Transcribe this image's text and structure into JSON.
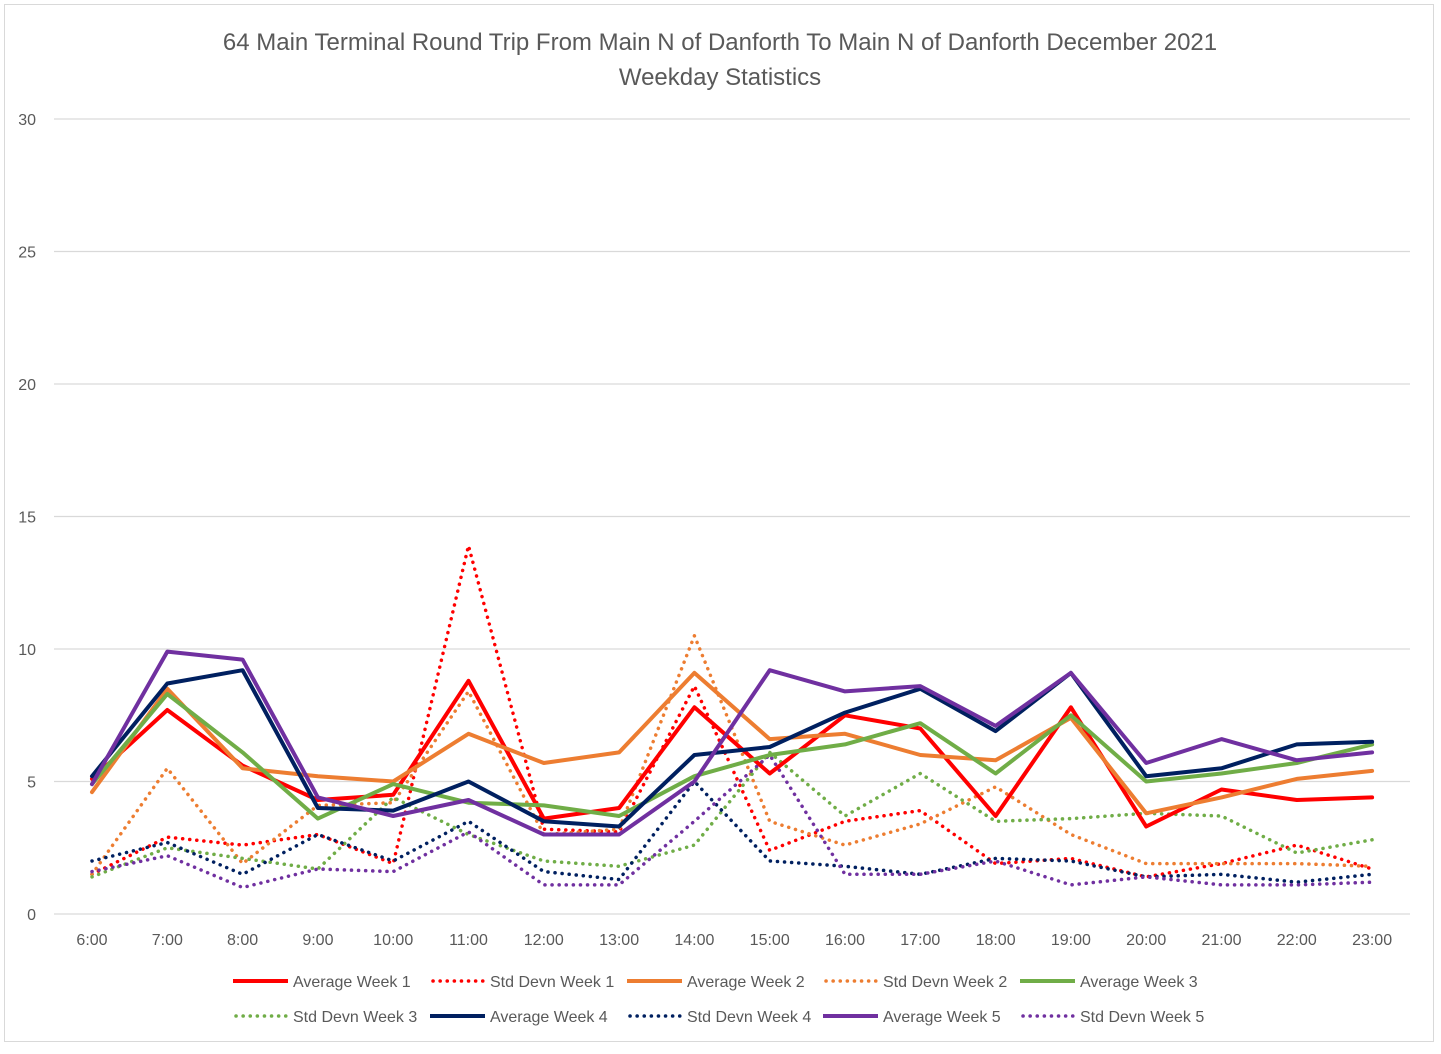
{
  "chart_data": {
    "type": "line",
    "title": "64 Main Terminal Round Trip From Main N of Danforth To Main N of Danforth December 2021",
    "subtitle": "Weekday Statistics",
    "xlabel": "",
    "ylabel": "",
    "ylim": [
      0,
      30
    ],
    "yticks": [
      "0",
      "5",
      "10",
      "15",
      "20",
      "25",
      "30"
    ],
    "grid": true,
    "legend_position": "bottom",
    "x": [
      "6:00",
      "7:00",
      "8:00",
      "9:00",
      "10:00",
      "11:00",
      "12:00",
      "13:00",
      "14:00",
      "15:00",
      "16:00",
      "17:00",
      "18:00",
      "19:00",
      "20:00",
      "21:00",
      "22:00",
      "23:00"
    ],
    "series": [
      {
        "name": "Average Week 1",
        "style": "solid",
        "color": "#ff0000",
        "values": [
          5.1,
          7.7,
          5.6,
          4.3,
          4.5,
          8.8,
          3.6,
          4.0,
          7.8,
          5.3,
          7.5,
          7.0,
          3.7,
          7.8,
          3.3,
          4.7,
          4.3,
          4.4
        ]
      },
      {
        "name": "Std Devn Week 1",
        "style": "dotted",
        "color": "#ff0000",
        "values": [
          1.5,
          2.9,
          2.6,
          3.0,
          1.9,
          13.9,
          3.2,
          3.1,
          8.6,
          2.4,
          3.5,
          3.9,
          1.9,
          2.1,
          1.4,
          1.9,
          2.6,
          1.7
        ]
      },
      {
        "name": "Average Week 2",
        "style": "solid",
        "color": "#ed7d31",
        "values": [
          4.6,
          8.5,
          5.5,
          5.2,
          5.0,
          6.8,
          5.7,
          6.1,
          9.1,
          6.6,
          6.8,
          6.0,
          5.8,
          7.4,
          3.8,
          4.4,
          5.1,
          5.4
        ]
      },
      {
        "name": "Std Devn Week 2",
        "style": "dotted",
        "color": "#ed7d31",
        "values": [
          1.5,
          5.5,
          1.9,
          4.1,
          4.2,
          8.4,
          3.0,
          3.2,
          10.5,
          3.5,
          2.6,
          3.4,
          4.8,
          3.0,
          1.9,
          1.9,
          1.9,
          1.8
        ]
      },
      {
        "name": "Average Week 3",
        "style": "solid",
        "color": "#70ad47",
        "values": [
          4.9,
          8.3,
          6.1,
          3.6,
          4.9,
          4.2,
          4.1,
          3.7,
          5.2,
          6.0,
          6.4,
          7.2,
          5.3,
          7.5,
          5.0,
          5.3,
          5.7,
          6.4
        ]
      },
      {
        "name": "Std Devn Week 3",
        "style": "dotted",
        "color": "#70ad47",
        "values": [
          1.4,
          2.5,
          2.1,
          1.7,
          4.4,
          3.0,
          2.0,
          1.8,
          2.6,
          6.1,
          3.7,
          5.3,
          3.5,
          3.6,
          3.8,
          3.7,
          2.3,
          2.8
        ]
      },
      {
        "name": "Average Week 4",
        "style": "solid",
        "color": "#002060",
        "values": [
          5.2,
          8.7,
          9.2,
          4.0,
          3.9,
          5.0,
          3.5,
          3.3,
          6.0,
          6.3,
          7.6,
          8.5,
          6.9,
          9.1,
          5.2,
          5.5,
          6.4,
          6.5
        ]
      },
      {
        "name": "Std Devn Week 4",
        "style": "dotted",
        "color": "#002060",
        "values": [
          2.0,
          2.7,
          1.5,
          3.0,
          2.0,
          3.5,
          1.6,
          1.3,
          5.0,
          2.0,
          1.8,
          1.5,
          2.1,
          2.0,
          1.4,
          1.5,
          1.2,
          1.5
        ]
      },
      {
        "name": "Average Week 5",
        "style": "solid",
        "color": "#7030a0",
        "values": [
          4.9,
          9.9,
          9.6,
          4.4,
          3.7,
          4.3,
          3.0,
          3.0,
          5.0,
          9.2,
          8.4,
          8.6,
          7.1,
          9.1,
          5.7,
          6.6,
          5.8,
          6.1
        ]
      },
      {
        "name": "Std Devn Week 5",
        "style": "dotted",
        "color": "#7030a0",
        "values": [
          1.6,
          2.2,
          1.0,
          1.7,
          1.6,
          3.1,
          1.1,
          1.1,
          3.5,
          6.0,
          1.5,
          1.5,
          2.0,
          1.1,
          1.4,
          1.1,
          1.1,
          1.2
        ]
      }
    ]
  },
  "colors": {
    "gridline": "#d9d9d9",
    "axis_text": "#595959",
    "border": "#d9d9d9"
  }
}
